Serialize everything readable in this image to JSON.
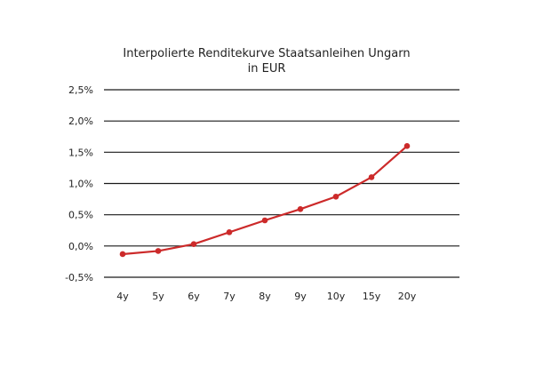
{
  "chart_data": {
    "type": "line",
    "title": "Interpolierte Renditekurve Staatsanleihen Ungarn",
    "subtitle": "in EUR",
    "xlabel": "",
    "ylabel": "",
    "categories": [
      "4y",
      "5y",
      "6y",
      "7y",
      "8y",
      "9y",
      "10y",
      "15y",
      "20y"
    ],
    "series": [
      {
        "values": [
          -0.13,
          -0.08,
          0.03,
          0.22,
          0.41,
          0.59,
          0.79,
          1.1,
          1.6
        ],
        "color": "#cc2a2a"
      }
    ],
    "ylim": [
      -0.5,
      2.5
    ],
    "yticks": [
      2.5,
      2.0,
      1.5,
      1.0,
      0.5,
      0.0,
      -0.5
    ],
    "ytick_labels": [
      "2,5%",
      "2,0%",
      "1,5%",
      "1,0%",
      "0,5%",
      "0,0%",
      "-0,5%"
    ],
    "grid": true,
    "legend": "none"
  }
}
